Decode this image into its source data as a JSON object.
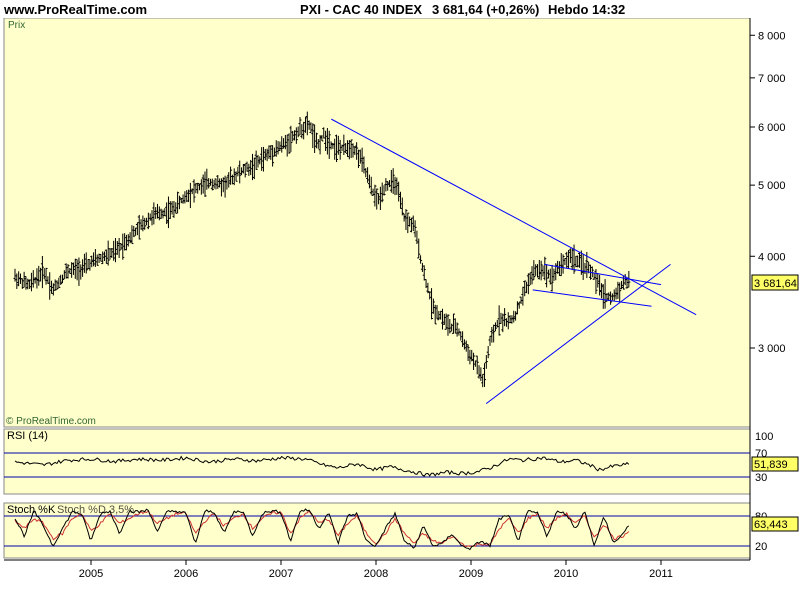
{
  "header": {
    "site": "www.ProRealTime.com",
    "instrument": "PXI - CAC 40 INDEX",
    "price": "3 681,64 (+0,26%)",
    "period": "Hebdo",
    "time": "14:32"
  },
  "main_panel": {
    "label": "Prix",
    "watermark": "© ProRealTime.com",
    "last_value_label": "3 681,64"
  },
  "rsi_panel": {
    "label": "RSI (14)",
    "value_label": "51,839"
  },
  "stoch_panel": {
    "label": "Stoch %K",
    "overlay_label": "Stoch %D 3,5%",
    "value_label": "63,443"
  },
  "colors": {
    "background": "#ffffcc",
    "trendline": "#0000ff",
    "price": "#000000",
    "stoch_d": "#cc3333",
    "value_box": "#ffff66"
  },
  "chart_data": [
    {
      "type": "line",
      "style": "ohlc-bars",
      "scale": "log",
      "title": "PXI - CAC 40 INDEX",
      "ylabel": "Prix",
      "yticks": [
        3000,
        4000,
        5000,
        6000,
        7000,
        8000
      ],
      "ytick_labels": [
        "3 000",
        "4 000",
        "5 000",
        "6 000",
        "7 000",
        "8 000"
      ],
      "ylim": [
        2300,
        8700
      ],
      "xticks": [
        "2005",
        "2006",
        "2007",
        "2008",
        "2009",
        "2010",
        "2011"
      ],
      "xlim": [
        2004.15,
        2011.0
      ],
      "x": [
        2004.2,
        2004.35,
        2004.5,
        2004.6,
        2004.75,
        2004.9,
        2005.05,
        2005.25,
        2005.45,
        2005.65,
        2005.85,
        2006.05,
        2006.25,
        2006.4,
        2006.55,
        2006.7,
        2006.85,
        2007.05,
        2007.2,
        2007.3,
        2007.38,
        2007.45,
        2007.55,
        2007.65,
        2007.75,
        2007.85,
        2007.95,
        2008.02,
        2008.1,
        2008.2,
        2008.3,
        2008.4,
        2008.5,
        2008.6,
        2008.7,
        2008.78,
        2008.85,
        2008.95,
        2009.05,
        2009.13,
        2009.2,
        2009.3,
        2009.4,
        2009.48,
        2009.55,
        2009.65,
        2009.75,
        2009.85,
        2009.95,
        2010.05,
        2010.15,
        2010.25,
        2010.32,
        2010.4,
        2010.48,
        2010.55,
        2010.62,
        2010.68
      ],
      "values": [
        3750,
        3650,
        3820,
        3600,
        3820,
        3850,
        3950,
        4050,
        4300,
        4550,
        4620,
        4900,
        5050,
        5000,
        5200,
        5300,
        5500,
        5700,
        5950,
        6050,
        5650,
        5850,
        5650,
        5600,
        5650,
        5400,
        4950,
        4750,
        5000,
        5050,
        4500,
        4400,
        3800,
        3400,
        3300,
        3200,
        3200,
        3000,
        2850,
        2700,
        3050,
        3300,
        3250,
        3350,
        3550,
        3800,
        3850,
        3750,
        3900,
        4000,
        3900,
        3850,
        3700,
        3550,
        3500,
        3600,
        3700,
        3682
      ]
    },
    {
      "type": "line",
      "title": "RSI (14)",
      "yticks": [
        30,
        70,
        100
      ],
      "ylim": [
        0,
        100
      ],
      "x": [
        2004.2,
        2004.5,
        2004.75,
        2005.0,
        2005.25,
        2005.5,
        2005.75,
        2006.0,
        2006.25,
        2006.5,
        2006.75,
        2007.0,
        2007.25,
        2007.45,
        2007.6,
        2007.8,
        2008.0,
        2008.15,
        2008.35,
        2008.55,
        2008.75,
        2008.9,
        2009.05,
        2009.2,
        2009.4,
        2009.55,
        2009.75,
        2009.95,
        2010.1,
        2010.25,
        2010.35,
        2010.5,
        2010.68
      ],
      "values": [
        55,
        50,
        58,
        60,
        56,
        60,
        58,
        62,
        55,
        60,
        57,
        62,
        60,
        50,
        45,
        52,
        42,
        47,
        40,
        33,
        38,
        36,
        38,
        45,
        60,
        58,
        62,
        55,
        58,
        50,
        42,
        48,
        51.839
      ]
    },
    {
      "type": "line",
      "title": "Stoch %K",
      "yticks": [
        20,
        80
      ],
      "ylim": [
        0,
        100
      ],
      "x": [
        2004.2,
        2004.3,
        2004.4,
        2004.5,
        2004.6,
        2004.7,
        2004.8,
        2004.9,
        2005.0,
        2005.1,
        2005.2,
        2005.3,
        2005.4,
        2005.5,
        2005.6,
        2005.7,
        2005.8,
        2005.9,
        2006.0,
        2006.1,
        2006.2,
        2006.3,
        2006.4,
        2006.5,
        2006.6,
        2006.7,
        2006.8,
        2006.9,
        2007.0,
        2007.1,
        2007.2,
        2007.3,
        2007.4,
        2007.5,
        2007.6,
        2007.7,
        2007.8,
        2007.9,
        2008.0,
        2008.1,
        2008.2,
        2008.3,
        2008.4,
        2008.5,
        2008.6,
        2008.7,
        2008.8,
        2008.9,
        2009.0,
        2009.1,
        2009.2,
        2009.3,
        2009.4,
        2009.5,
        2009.6,
        2009.7,
        2009.8,
        2009.9,
        2010.0,
        2010.1,
        2010.2,
        2010.3,
        2010.4,
        2010.5,
        2010.6,
        2010.68
      ],
      "series": [
        {
          "name": "Stoch %K",
          "values": [
            75,
            40,
            90,
            60,
            20,
            55,
            88,
            85,
            30,
            85,
            90,
            45,
            90,
            88,
            92,
            50,
            88,
            90,
            85,
            25,
            90,
            88,
            45,
            88,
            90,
            40,
            85,
            90,
            88,
            30,
            90,
            92,
            55,
            88,
            25,
            80,
            85,
            30,
            20,
            55,
            85,
            30,
            15,
            60,
            20,
            25,
            45,
            20,
            15,
            30,
            20,
            75,
            80,
            30,
            90,
            85,
            40,
            88,
            85,
            55,
            90,
            20,
            80,
            25,
            45,
            63.443
          ]
        },
        {
          "name": "Stoch %D 3,5%",
          "values": [
            70,
            55,
            75,
            65,
            35,
            45,
            75,
            85,
            50,
            65,
            85,
            65,
            75,
            85,
            90,
            65,
            75,
            85,
            85,
            45,
            70,
            85,
            60,
            75,
            85,
            55,
            75,
            85,
            88,
            45,
            75,
            90,
            65,
            75,
            40,
            65,
            80,
            45,
            25,
            45,
            75,
            45,
            25,
            45,
            30,
            25,
            40,
            25,
            18,
            25,
            22,
            55,
            75,
            45,
            75,
            85,
            55,
            75,
            85,
            65,
            80,
            35,
            65,
            35,
            40,
            55
          ]
        }
      ]
    }
  ]
}
